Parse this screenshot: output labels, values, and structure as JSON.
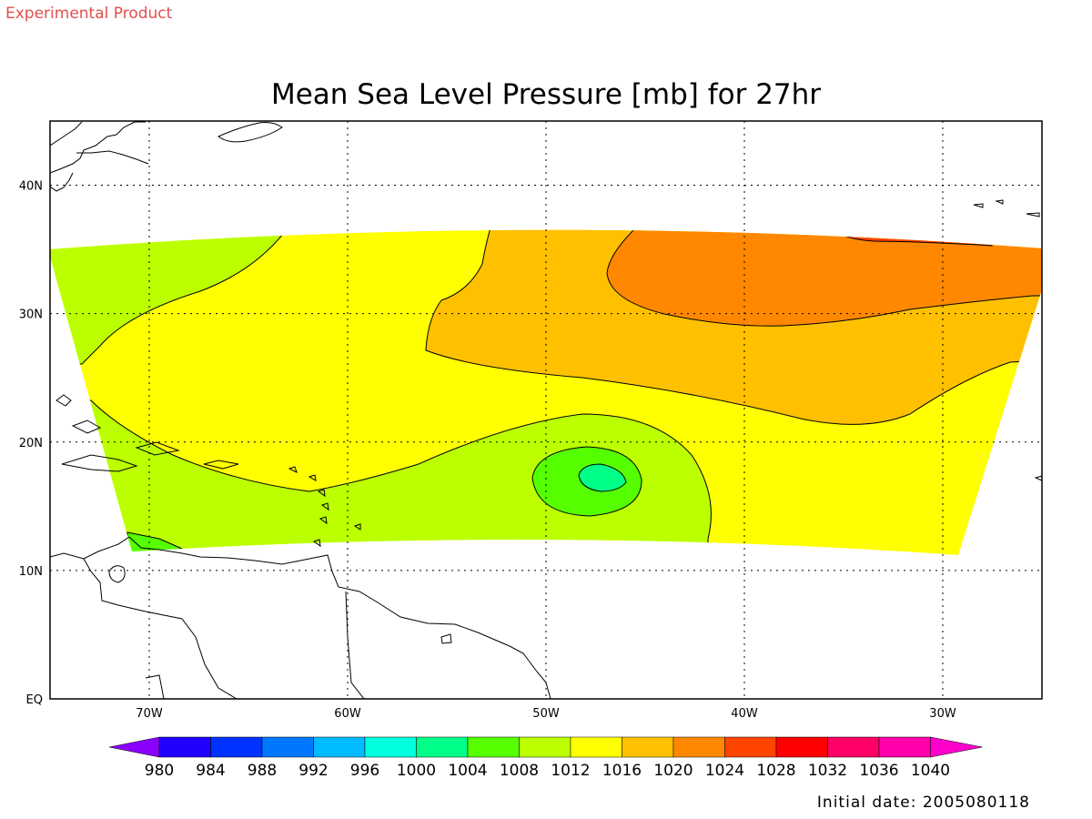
{
  "header": {
    "banner": "Experimental Product",
    "banner_color": "#e0504e"
  },
  "chart_data": {
    "type": "heatmap",
    "title": "Mean Sea Level Pressure [mb] for 27hr",
    "variable_units": "mb",
    "forecast_hour": "27hr",
    "lon_range": [
      -75,
      -25
    ],
    "lat_range": [
      0,
      45
    ],
    "lon_ticks": [
      -70,
      -60,
      -50,
      -40,
      -30
    ],
    "lon_tick_labels": [
      "70W",
      "60W",
      "50W",
      "40W",
      "30W"
    ],
    "lat_ticks": [
      0,
      10,
      20,
      30,
      40
    ],
    "lat_tick_labels": [
      "EQ",
      "10N",
      "20N",
      "30N",
      "40N"
    ],
    "grid": "dotted",
    "contour_levels": [
      980,
      984,
      988,
      992,
      996,
      1000,
      1004,
      1008,
      1012,
      1016,
      1020,
      1024,
      1028,
      1032,
      1036,
      1040
    ],
    "colorbar": {
      "labels": [
        "980",
        "984",
        "988",
        "992",
        "996",
        "1000",
        "1004",
        "1008",
        "1012",
        "1016",
        "1020",
        "1024",
        "1028",
        "1032",
        "1036",
        "1040"
      ],
      "colors": [
        "#2200ff",
        "#0033ff",
        "#0077ff",
        "#00bbff",
        "#00ffdd",
        "#00ff88",
        "#55ff00",
        "#bbff00",
        "#ffff00",
        "#ffc000",
        "#ff8800",
        "#ff4400",
        "#ff0000",
        "#ff0066",
        "#ff00aa"
      ],
      "below_color": "#8a00ff",
      "above_color": "#ff00cc"
    },
    "features": {
      "low_center": {
        "lon": -47.5,
        "lat": 17.3,
        "min_range_mb": [
          1004,
          1008
        ]
      },
      "high_ridge": {
        "lon": -38,
        "lat": 33,
        "range_mb": [
          1024,
          1028
        ]
      }
    }
  },
  "footer": {
    "initial_date": "Initial date: 2005080118"
  }
}
